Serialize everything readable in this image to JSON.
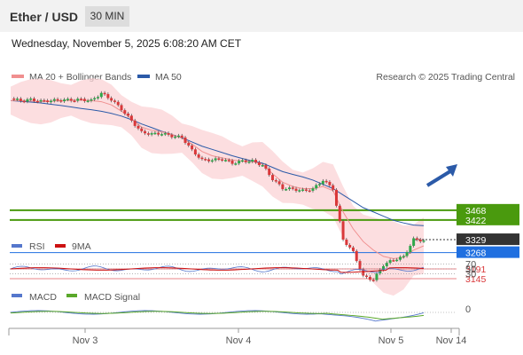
{
  "header": {
    "title": "Ether / USD",
    "timeframe": "30 MIN"
  },
  "datetime": "Wednesday, November 5, 2025 6:08:20 AM CET",
  "legend": {
    "bollinger": "MA 20 + Bollinger Bands",
    "ma50": "MA 50",
    "credit": "Research © 2025 Trading Central"
  },
  "rsi_legend": {
    "rsi": "RSI",
    "ma": "9MA"
  },
  "macd_legend": {
    "macd": "MACD",
    "signal": "MACD Signal"
  },
  "colors": {
    "up": "#2ea84a",
    "down": "#d9383a",
    "ma50": "#2b5aa8",
    "green_level": "#4a9a0e",
    "blue_level": "#1f6fe0",
    "red_level": "#e8848a"
  },
  "chart_data": {
    "type": "line",
    "title": "Ether / USD",
    "timeframe": "30 MIN",
    "x_ticks": [
      "Nov 3",
      "Nov 4",
      "Nov 5",
      "Nov 14"
    ],
    "levels": [
      {
        "value": 3468,
        "label": "3468",
        "kind": "resistance",
        "color": "#4a9a0e"
      },
      {
        "value": 3422,
        "label": "3422",
        "kind": "resistance",
        "color": "#4a9a0e"
      },
      {
        "value": 3329,
        "label": "3329",
        "kind": "last_price",
        "color": "#333333"
      },
      {
        "value": 3268,
        "label": "3268",
        "kind": "pivot",
        "color": "#1f6fe0"
      },
      {
        "value": 3191,
        "label": "3191",
        "kind": "support",
        "color": "#e8848a"
      },
      {
        "value": 3145,
        "label": "3145",
        "kind": "support",
        "color": "#e8848a"
      }
    ],
    "series": [
      {
        "name": "Price",
        "values": [
          3995,
          3985,
          3990,
          3982,
          3985,
          3988,
          3988,
          3990,
          3985,
          4020,
          3990,
          3945,
          3890,
          3835,
          3828,
          3830,
          3818,
          3812,
          3750,
          3705,
          3705,
          3710,
          3690,
          3700,
          3700,
          3680,
          3615,
          3572,
          3568,
          3560,
          3568,
          3610,
          3570,
          3330,
          3270,
          3155,
          3140,
          3210,
          3235,
          3248,
          3330,
          3325
        ]
      },
      {
        "name": "MA 20",
        "values": [
          3985,
          3985,
          3983,
          3981,
          3982,
          3985,
          3987,
          3987,
          3985,
          3980,
          3965,
          3935,
          3900,
          3860,
          3845,
          3838,
          3825,
          3808,
          3780,
          3745,
          3725,
          3715,
          3705,
          3700,
          3697,
          3685,
          3640,
          3600,
          3580,
          3570,
          3570,
          3580,
          3560,
          3460,
          3380,
          3320,
          3280,
          3250,
          3240,
          3245,
          3280,
          3300
        ]
      },
      {
        "name": "MA 50",
        "values": [
          3985,
          3982,
          3978,
          3974,
          3968,
          3962,
          3955,
          3948,
          3942,
          3935,
          3925,
          3912,
          3895,
          3875,
          3858,
          3840,
          3825,
          3810,
          3790,
          3770,
          3755,
          3740,
          3725,
          3712,
          3700,
          3690,
          3670,
          3650,
          3637,
          3625,
          3610,
          3590,
          3570,
          3540,
          3510,
          3480,
          3460,
          3440,
          3420,
          3408,
          3398,
          3395
        ]
      }
    ],
    "ylim": [
      3100,
      4080
    ],
    "rsi": {
      "ticks": [
        70,
        50,
        30
      ]
    },
    "macd": {
      "ticks": [
        0
      ]
    },
    "legend_position": "top-left"
  }
}
